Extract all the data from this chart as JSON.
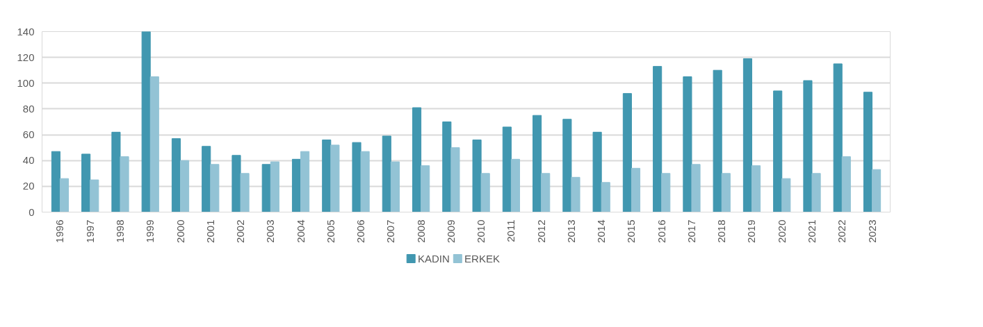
{
  "chart_data": {
    "type": "bar",
    "categories": [
      "1996",
      "1997",
      "1998",
      "1999",
      "2000",
      "2001",
      "2002",
      "2003",
      "2004",
      "2005",
      "2006",
      "2007",
      "2008",
      "2009",
      "2010",
      "2011",
      "2012",
      "2013",
      "2014",
      "2015",
      "2016",
      "2017",
      "2018",
      "2019",
      "2020",
      "2021",
      "2022",
      "2023"
    ],
    "series": [
      {
        "name": "KADIN",
        "color": "#4197b0",
        "values": [
          47,
          45,
          62,
          140,
          57,
          51,
          44,
          37,
          41,
          56,
          54,
          59,
          81,
          70,
          56,
          66,
          75,
          72,
          62,
          92,
          113,
          105,
          110,
          119,
          94,
          102,
          115,
          93
        ]
      },
      {
        "name": "ERKEK",
        "color": "#93c3d5",
        "values": [
          26,
          25,
          43,
          105,
          40,
          37,
          30,
          39,
          47,
          52,
          47,
          39,
          36,
          50,
          30,
          41,
          30,
          27,
          23,
          34,
          30,
          37,
          30,
          36,
          26,
          30,
          43,
          33
        ]
      }
    ],
    "ylim": [
      0,
      140
    ],
    "yticks": [
      0,
      20,
      40,
      60,
      80,
      100,
      120,
      140
    ],
    "grid": "y",
    "legend": "bottom"
  }
}
